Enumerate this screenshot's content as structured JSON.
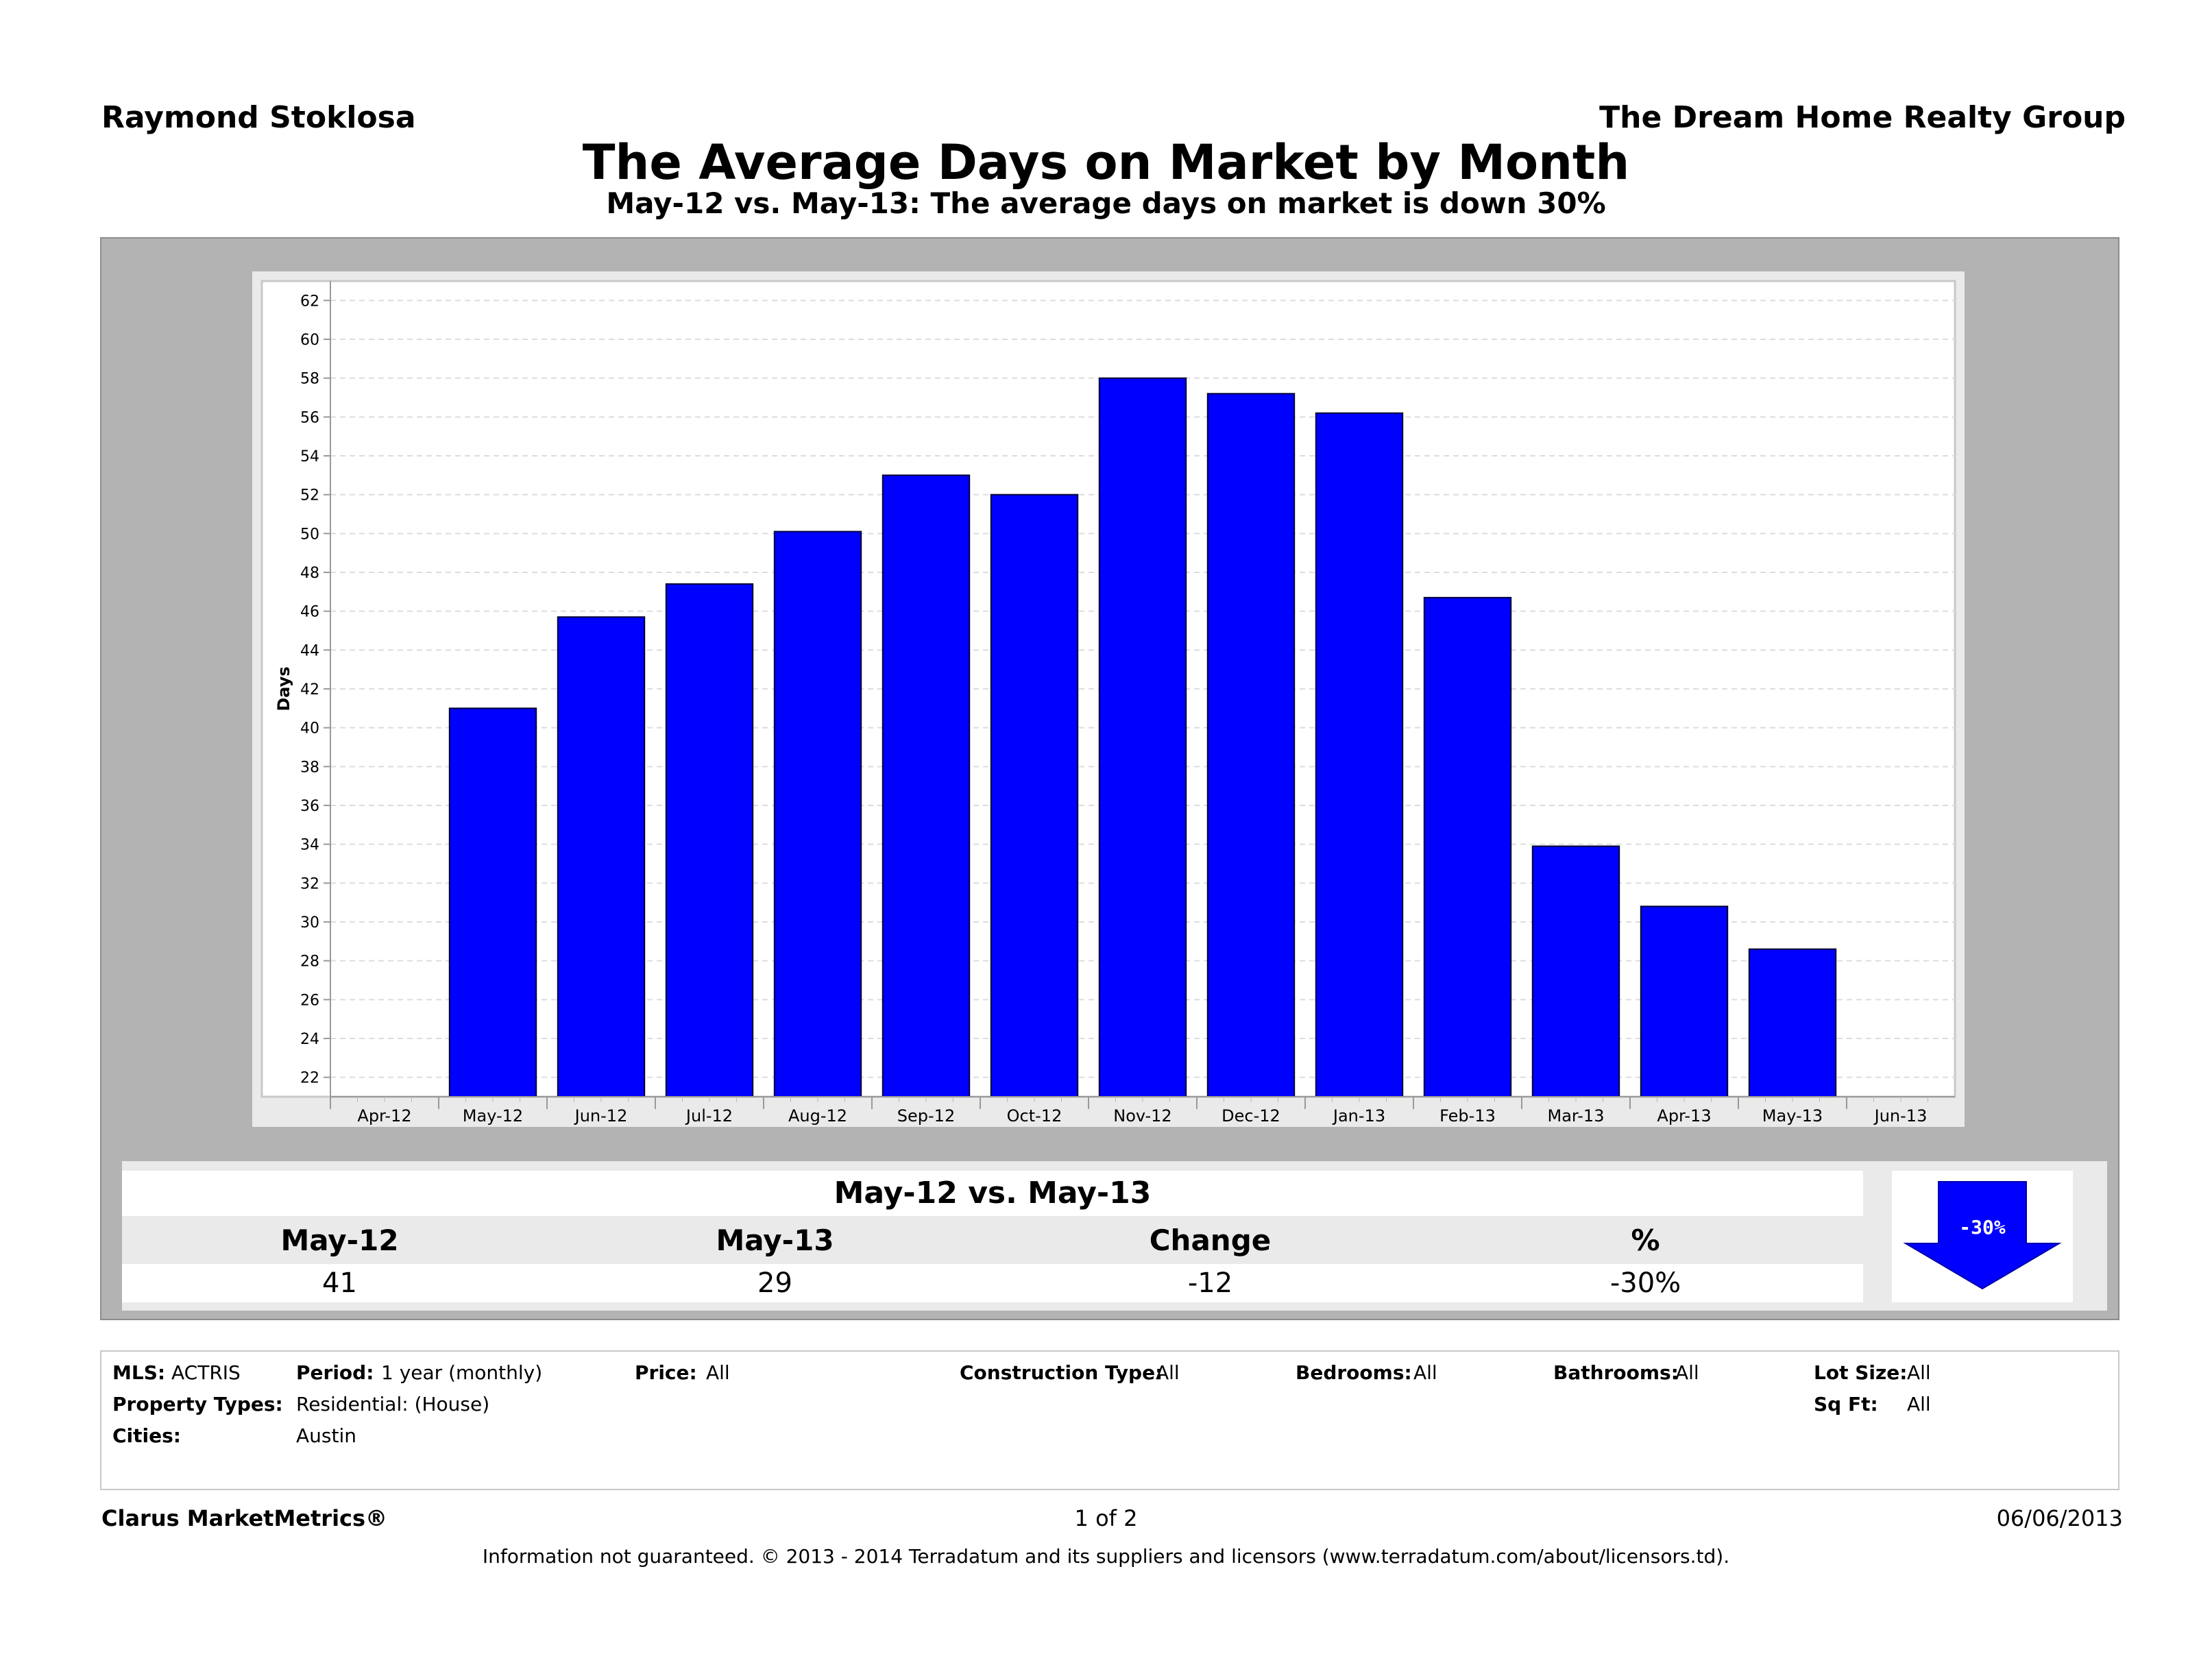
{
  "header": {
    "agent": "Raymond Stoklosa",
    "company": "The Dream Home Realty Group",
    "title": "The Average Days on Market by Month",
    "subtitle": "May-12 vs. May-13:  The average days on market is down 30%"
  },
  "chart_data": {
    "type": "bar",
    "title": "The Average Days on Market by Month",
    "xlabel": "",
    "ylabel": "Days",
    "axis_ticks": [
      "Apr-12",
      "May-12",
      "Jun-12",
      "Jul-12",
      "Aug-12",
      "Sep-12",
      "Oct-12",
      "Nov-12",
      "Dec-12",
      "Jan-13",
      "Feb-13",
      "Mar-13",
      "Apr-13",
      "May-13",
      "Jun-13"
    ],
    "categories": [
      "May-12",
      "Jun-12",
      "Jul-12",
      "Aug-12",
      "Sep-12",
      "Oct-12",
      "Nov-12",
      "Dec-12",
      "Jan-13",
      "Feb-13",
      "Mar-13",
      "Apr-13",
      "May-13"
    ],
    "values": [
      41,
      45.7,
      47.4,
      50.1,
      53,
      52,
      58,
      57.2,
      56.2,
      46.7,
      33.9,
      30.8,
      28.6
    ],
    "ylim": [
      21,
      63
    ],
    "yticks": [
      22,
      24,
      26,
      28,
      30,
      32,
      34,
      36,
      38,
      40,
      42,
      44,
      46,
      48,
      50,
      52,
      54,
      56,
      58,
      60,
      62
    ],
    "bar_color": "#0000ff",
    "grid": true
  },
  "summary": {
    "title": "May-12 vs. May-13",
    "headers": [
      "May-12",
      "May-13",
      "Change",
      "%"
    ],
    "values": [
      "41",
      "29",
      "-12",
      "-30%"
    ],
    "badge": "-30%",
    "arrow_color": "#0000ff"
  },
  "criteria": {
    "mls_label": "MLS:",
    "mls_value": "ACTRIS",
    "period_label": "Period:",
    "period_value": "1 year (monthly)",
    "price_label": "Price:",
    "price_value": "All",
    "construction_label": "Construction Type:",
    "construction_value": "All",
    "bedrooms_label": "Bedrooms:",
    "bedrooms_value": "All",
    "bathrooms_label": "Bathrooms:",
    "bathrooms_value": "All",
    "lotsize_label": "Lot Size:",
    "lotsize_value": "All",
    "proptypes_label": "Property Types:",
    "proptypes_value": "Residential: (House)",
    "sqft_label": "Sq Ft:",
    "sqft_value": "All",
    "cities_label": "Cities:",
    "cities_value": "Austin"
  },
  "footer": {
    "brand": "Clarus MarketMetrics®",
    "page": "1 of 2",
    "date": "06/06/2013",
    "disclaimer": "Information not guaranteed.  © 2013 - 2014 Terradatum and its suppliers and licensors (www.terradatum.com/about/licensors.td)."
  }
}
